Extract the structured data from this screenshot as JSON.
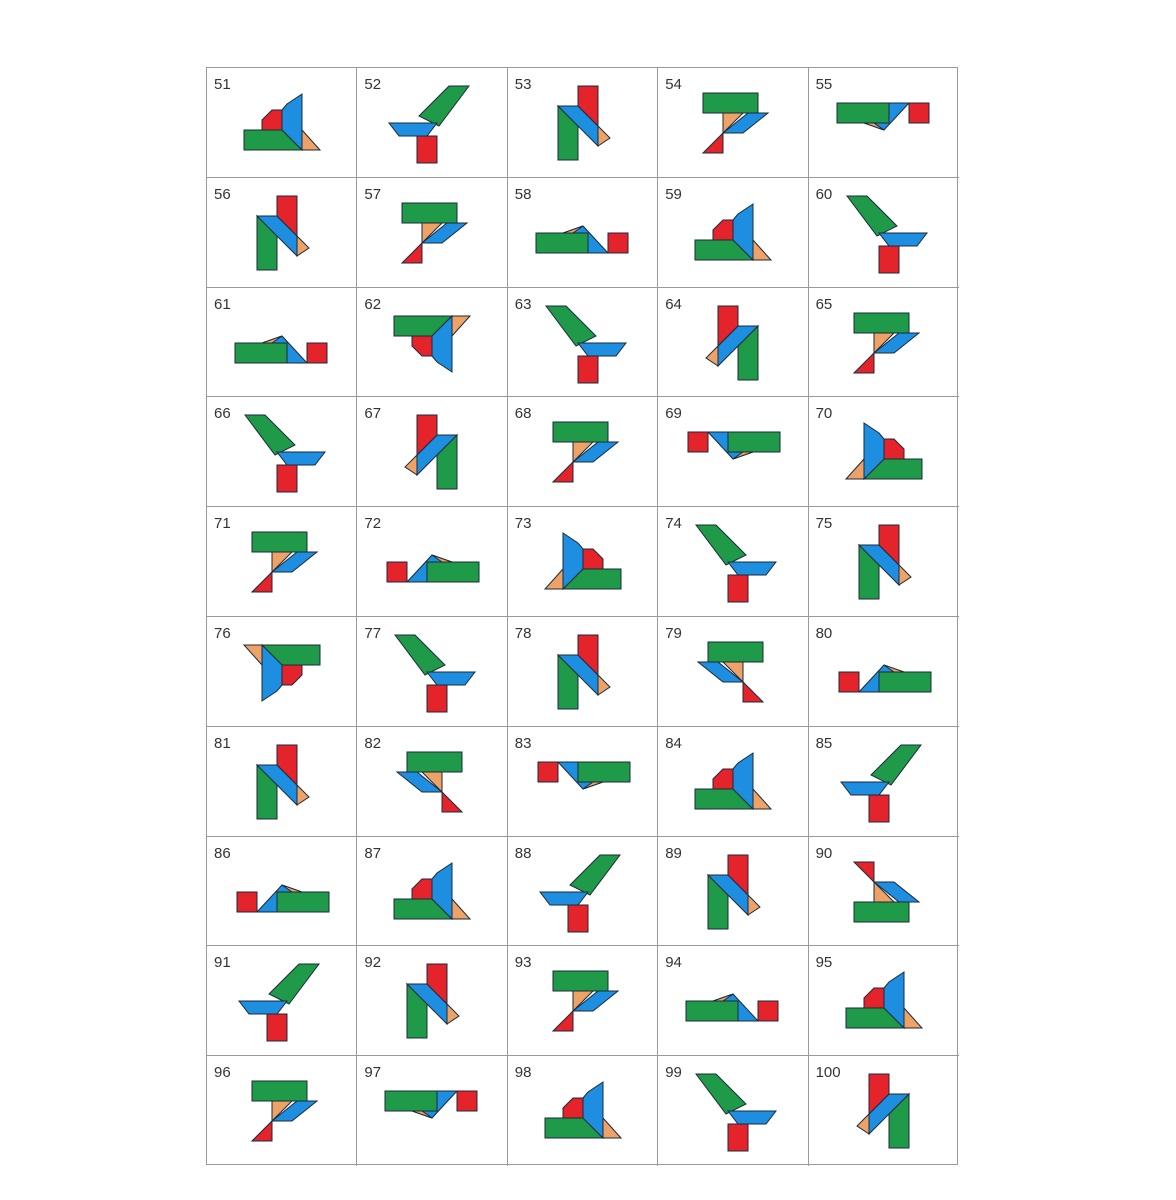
{
  "puzzle_numbers": [
    "51",
    "52",
    "53",
    "54",
    "55",
    "56",
    "57",
    "58",
    "59",
    "60",
    "61",
    "62",
    "63",
    "64",
    "65",
    "66",
    "67",
    "68",
    "69",
    "70",
    "71",
    "72",
    "73",
    "74",
    "75",
    "76",
    "77",
    "78",
    "79",
    "80",
    "81",
    "82",
    "83",
    "84",
    "85",
    "86",
    "87",
    "88",
    "89",
    "90",
    "91",
    "92",
    "93",
    "94",
    "95",
    "96",
    "97",
    "98",
    "99",
    "100"
  ],
  "piece_colors": {
    "green": "#1f9a48",
    "blue": "#1e8ee0",
    "red": "#e4232b",
    "orange": "#eea266"
  },
  "layout": {
    "columns": 5,
    "rows": 10
  }
}
